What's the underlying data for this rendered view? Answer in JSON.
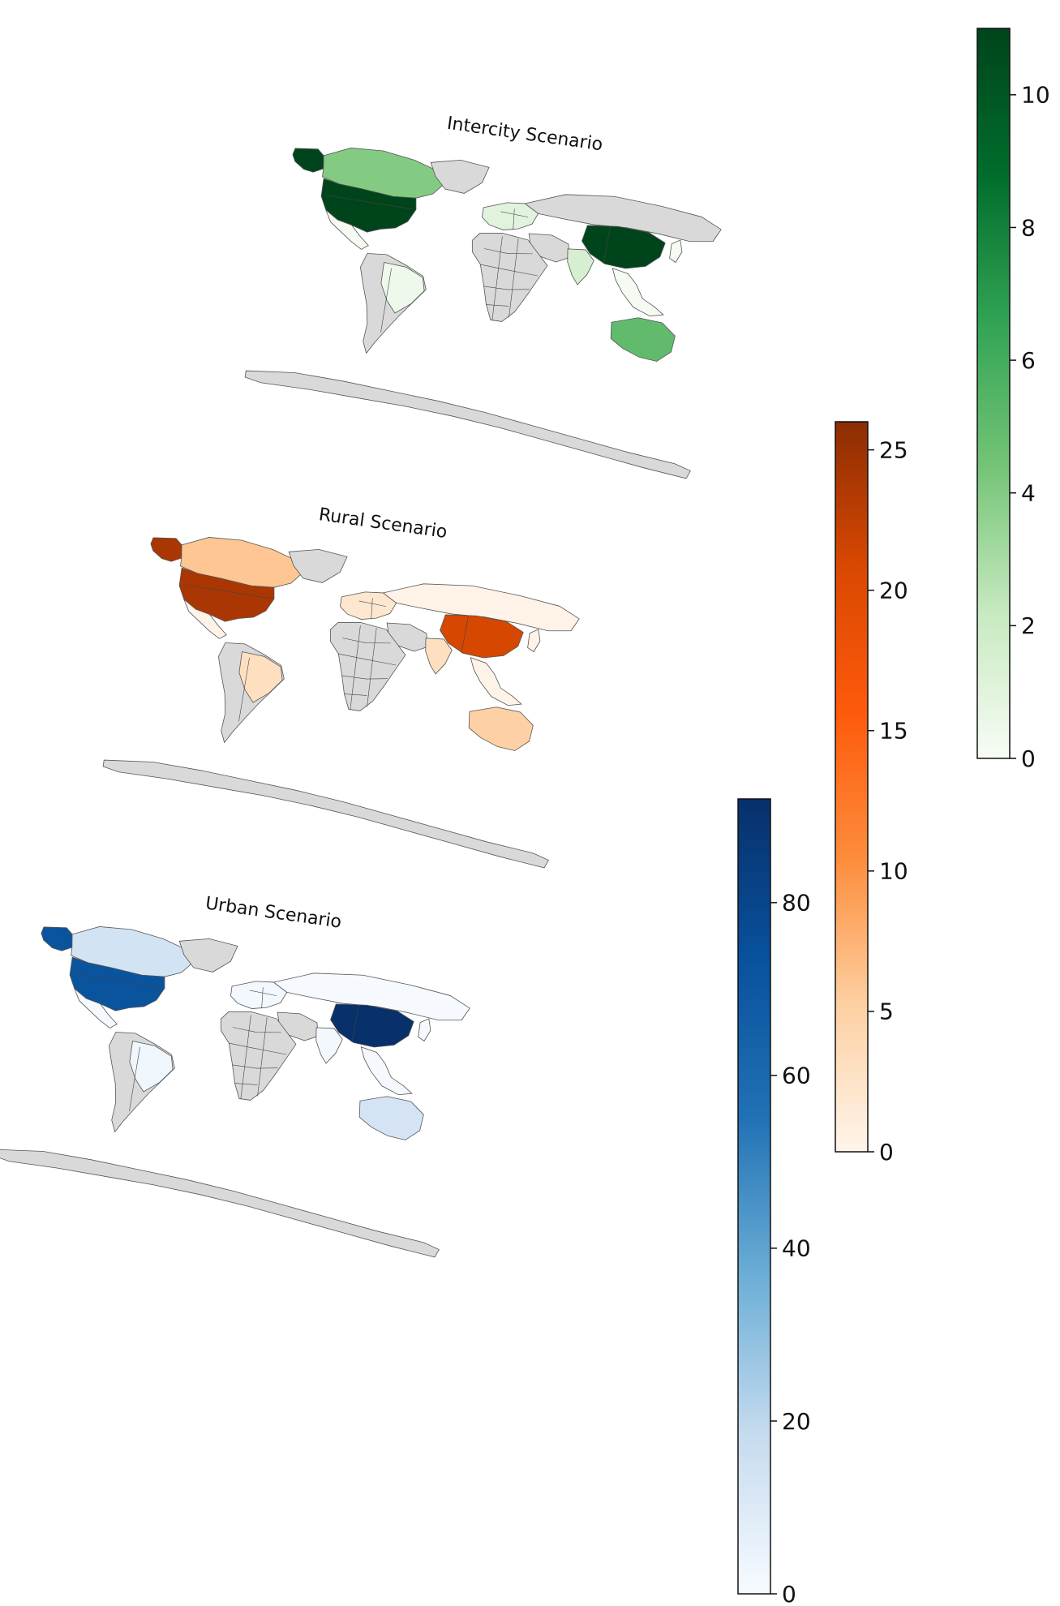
{
  "maps": [
    {
      "id": "intercity",
      "title": "Intercity Scenario",
      "colormap": "Greens",
      "colorbar": {
        "min": 0,
        "max": 11,
        "ticks": [
          0,
          2,
          4,
          6,
          8,
          10
        ],
        "colors": [
          "#f7fcf5",
          "#c7e9c0",
          "#74c476",
          "#31a354",
          "#006d2c",
          "#00441b"
        ]
      },
      "regions": {
        "usa": 11,
        "alaska": 11,
        "canada": 4,
        "china": 11,
        "australia": 5,
        "india": 1.5,
        "brazil": 0.4,
        "europe": 1,
        "russia": null,
        "greenland": null,
        "africa": null,
        "antarctica": null
      }
    },
    {
      "id": "rural",
      "title": "Rural Scenario",
      "colormap": "Oranges",
      "colorbar": {
        "min": 0,
        "max": 26,
        "ticks": [
          0,
          5,
          10,
          15,
          20,
          25
        ],
        "colors": [
          "#fff5eb",
          "#fdd0a2",
          "#fd8d3c",
          "#fe5a0c",
          "#d94801",
          "#8c2d04"
        ]
      },
      "regions": {
        "usa": 24,
        "alaska": 24,
        "canada": 6,
        "china": 21,
        "australia": 5,
        "india": 3,
        "brazil": 3,
        "europe": 2,
        "russia": 0.3,
        "greenland": null,
        "africa": null,
        "antarctica": null
      }
    },
    {
      "id": "urban",
      "title": "Urban Scenario",
      "colormap": "Blues",
      "colorbar": {
        "min": 0,
        "max": 92,
        "ticks": [
          0,
          20,
          40,
          60,
          80
        ],
        "colors": [
          "#f7fbff",
          "#c6dbef",
          "#6baed6",
          "#2171b5",
          "#08519c",
          "#08306b"
        ]
      },
      "regions": {
        "usa": 72,
        "alaska": 72,
        "canada": 14,
        "china": 92,
        "australia": 13,
        "india": 2,
        "brazil": 3,
        "europe": 2,
        "russia": 0.5,
        "greenland": null,
        "africa": null,
        "antarctica": null
      }
    }
  ],
  "no_data_color": "#d9d9d9"
}
